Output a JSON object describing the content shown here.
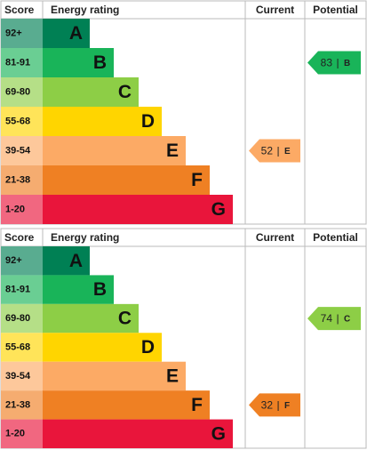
{
  "tables": [
    {
      "headers": {
        "score": "Score",
        "rating": "Energy rating",
        "current": "Current",
        "potential": "Potential"
      },
      "bands": [
        {
          "score": "92+",
          "letter": "A",
          "color": "#008054"
        },
        {
          "score": "81-91",
          "letter": "B",
          "color": "#19b459"
        },
        {
          "score": "69-80",
          "letter": "C",
          "color": "#8dce46"
        },
        {
          "score": "55-68",
          "letter": "D",
          "color": "#ffd500"
        },
        {
          "score": "39-54",
          "letter": "E",
          "color": "#fcaa65"
        },
        {
          "score": "21-38",
          "letter": "F",
          "color": "#ef8023"
        },
        {
          "score": "1-20",
          "letter": "G",
          "color": "#e9153b"
        }
      ],
      "current": {
        "score": 52,
        "separator": "|",
        "band": "E"
      },
      "potential": {
        "score": 83,
        "separator": "|",
        "band": "B"
      }
    },
    {
      "headers": {
        "score": "Score",
        "rating": "Energy rating",
        "current": "Current",
        "potential": "Potential"
      },
      "bands": [
        {
          "score": "92+",
          "letter": "A",
          "color": "#008054"
        },
        {
          "score": "81-91",
          "letter": "B",
          "color": "#19b459"
        },
        {
          "score": "69-80",
          "letter": "C",
          "color": "#8dce46"
        },
        {
          "score": "55-68",
          "letter": "D",
          "color": "#ffd500"
        },
        {
          "score": "39-54",
          "letter": "E",
          "color": "#fcaa65"
        },
        {
          "score": "21-38",
          "letter": "F",
          "color": "#ef8023"
        },
        {
          "score": "1-20",
          "letter": "G",
          "color": "#e9153b"
        }
      ],
      "current": {
        "score": 32,
        "separator": "|",
        "band": "F"
      },
      "potential": {
        "score": 74,
        "separator": "|",
        "band": "C"
      }
    }
  ]
}
